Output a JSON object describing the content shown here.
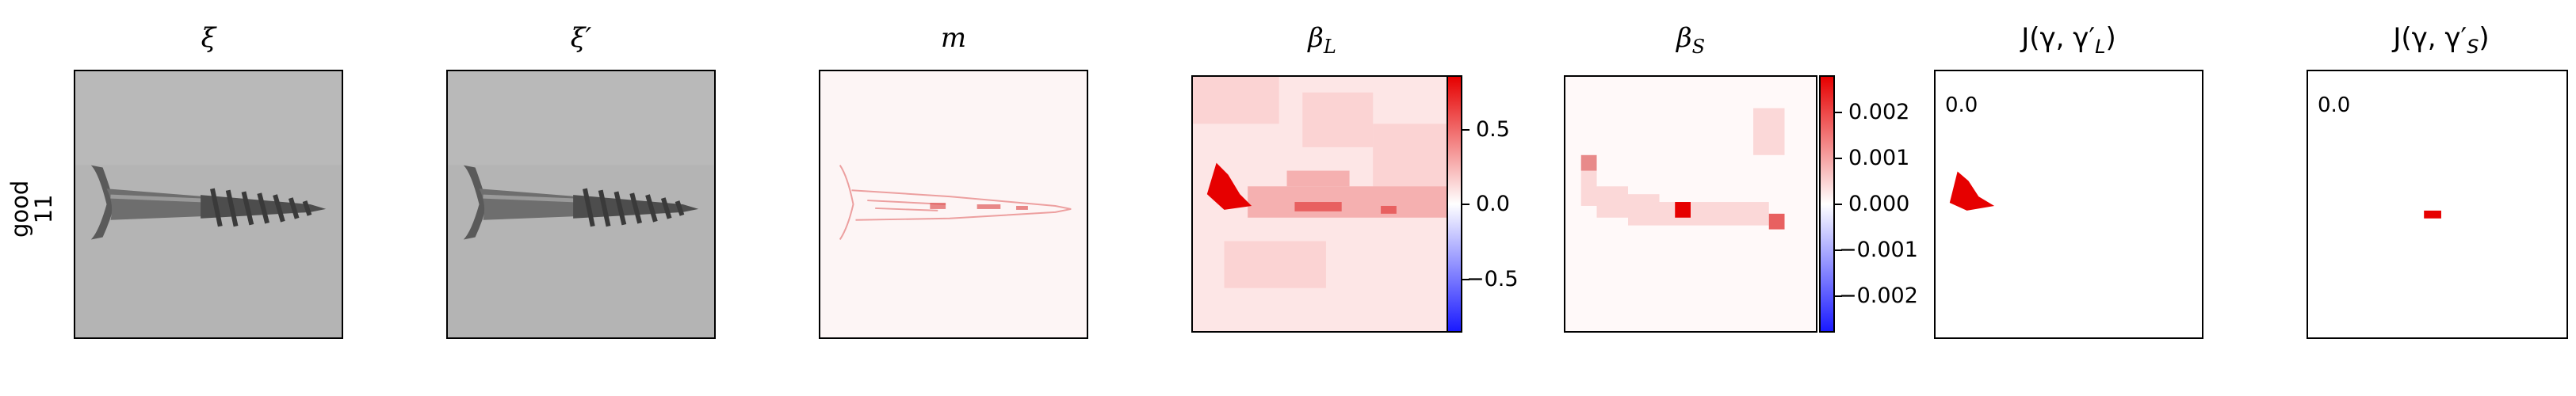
{
  "row_label": {
    "line1": "good",
    "line2": "11"
  },
  "panels": [
    {
      "title": "ξ"
    },
    {
      "title": "ξ′"
    },
    {
      "title": "m"
    },
    {
      "title": "β",
      "title_sub": "L"
    },
    {
      "title": "β",
      "title_sub": "S"
    },
    {
      "title": "J(γ, γ′",
      "title_sub": "L",
      "title_end": ")"
    },
    {
      "title": "J(γ, γ′",
      "title_sub": "S",
      "title_end": ")"
    }
  ],
  "colorbar_L": {
    "ticks": [
      "0.5",
      "0.0",
      "−0.5"
    ]
  },
  "colorbar_S": {
    "ticks": [
      "0.002",
      "0.001",
      "0.000",
      "−0.001",
      "−0.002"
    ]
  },
  "scores": {
    "L": "0.0",
    "S": "0.0"
  },
  "colors": {
    "positive": "#e60000",
    "negative": "#1a1aff",
    "neutral": "#ffffff",
    "background_gray": "#b3b3b3"
  }
}
